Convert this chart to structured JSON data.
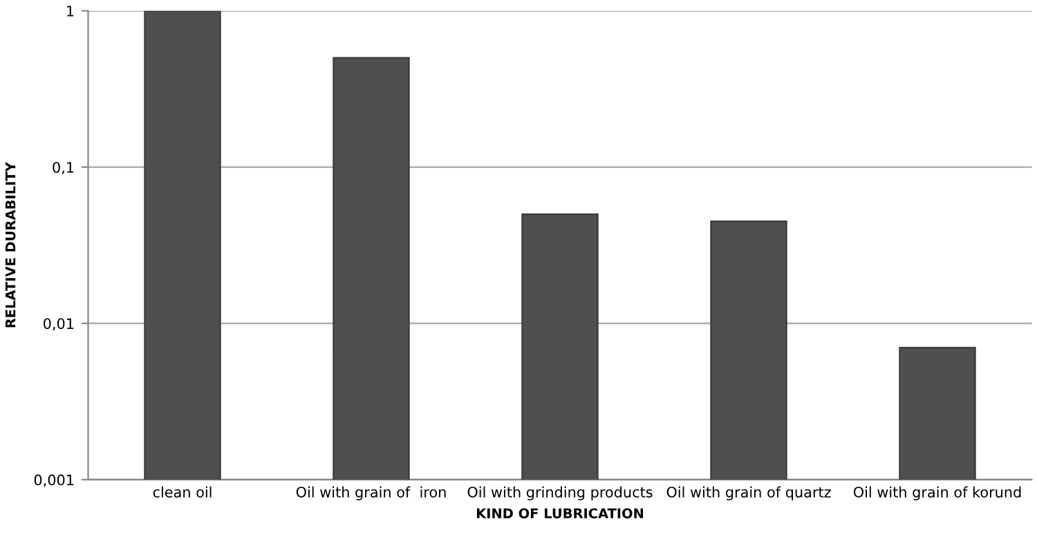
{
  "chart_data": {
    "type": "bar",
    "xlabel": "KIND OF LUBRICATION",
    "ylabel": "RELATIVE DURABILITY",
    "categories": [
      "clean oil",
      "Oil with grain of  iron",
      "Oil with grinding products",
      "Oil with grain of quartz",
      "Oil with grain of korund"
    ],
    "values": [
      1,
      0.5,
      0.05,
      0.045,
      0.007
    ],
    "color": "#4f4f4f",
    "log": "y",
    "ylim": [
      0.001,
      1
    ],
    "yticks": [
      {
        "value": 0.001,
        "label": "0,001"
      },
      {
        "value": 0.01,
        "label": "0,01"
      },
      {
        "value": 0.1,
        "label": "0,1"
      },
      {
        "value": 1,
        "label": "1"
      }
    ],
    "grid": "y",
    "legend": false
  }
}
